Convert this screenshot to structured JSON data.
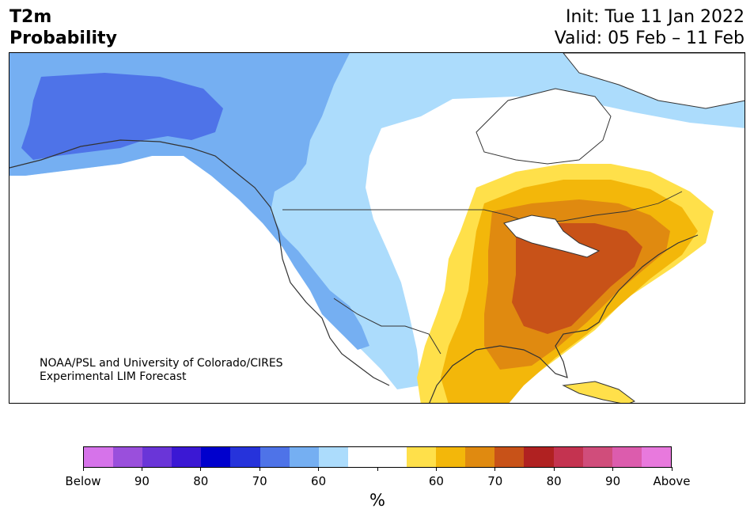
{
  "header": {
    "title_line1": "T2m",
    "title_line2": "Probability",
    "init_line": "Init: Tue 11 Jan 2022",
    "valid_line": "Valid: 05 Feb – 11 Feb"
  },
  "credit": {
    "line1": "NOAA/PSL and University of Colorado/CIRES",
    "line2": "Experimental LIM Forecast"
  },
  "colorbar": {
    "colors": [
      "#d673ea",
      "#9a4fdc",
      "#6a35d8",
      "#3b18d4",
      "#0000cd",
      "#2633db",
      "#4e73e8",
      "#75aff2",
      "#acdcfc",
      "#ffffff",
      "#ffffff",
      "#ffe04a",
      "#f3b70a",
      "#e08a10",
      "#c85218",
      "#b02121",
      "#c43350",
      "#d04d7b",
      "#dc5cad",
      "#e879dd"
    ],
    "tick_labels": [
      "Below",
      "90",
      "80",
      "70",
      "60",
      "",
      "60",
      "70",
      "80",
      "90",
      "Above"
    ],
    "unit": "%"
  },
  "map_colors": {
    "land": "#ffffff",
    "cold_60": "#acdcfc",
    "cold_70": "#75aff2",
    "cold_80": "#4e73e8",
    "warm_60": "#ffe04a",
    "warm_70": "#f3b70a",
    "warm_80": "#e08a10",
    "warm_90": "#c85218",
    "border": "#333333"
  }
}
